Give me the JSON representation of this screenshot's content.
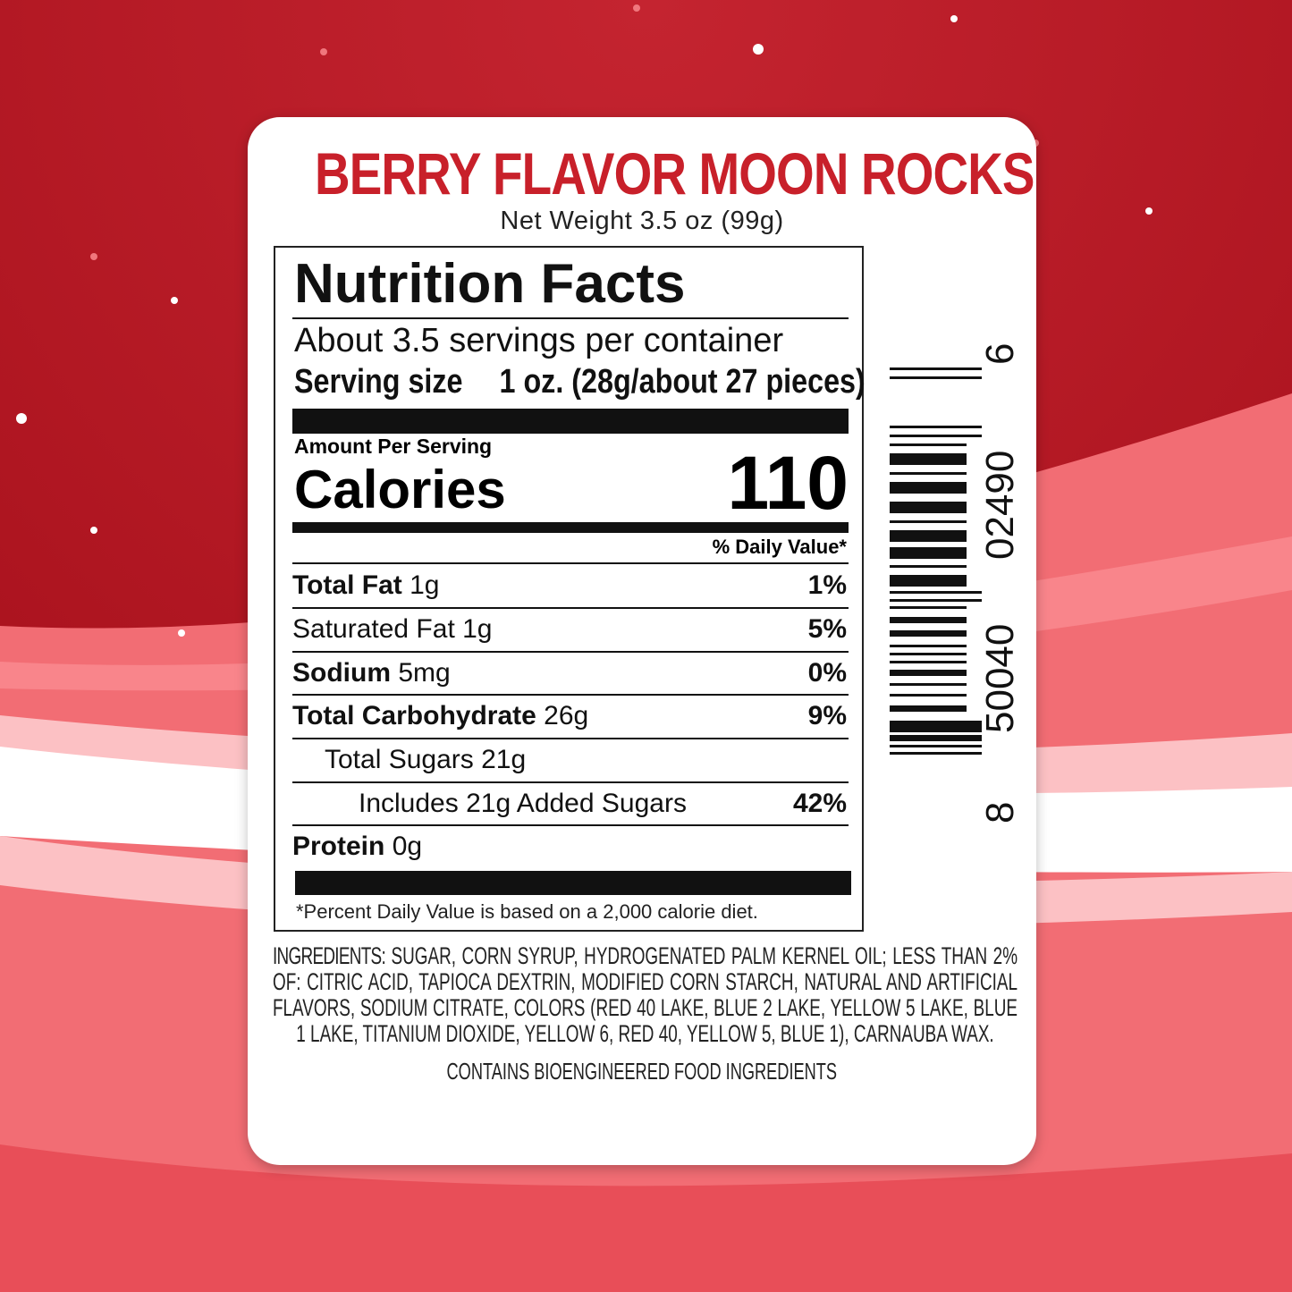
{
  "colors": {
    "background_red": "#b3141f",
    "wave_pink": "#f7737a",
    "title_red": "#c8202a"
  },
  "product": {
    "title": "BERRY FLAVOR MOON ROCKS",
    "net_weight": "Net Weight 3.5 oz (99g)"
  },
  "nutrition": {
    "heading": "Nutrition Facts",
    "servings": "About 3.5 servings per container",
    "serving_size_label": "Serving size",
    "serving_size_value": "1 oz. (28g/about 27 pieces)",
    "amount_per_serving": "Amount Per Serving",
    "calories_label": "Calories",
    "calories_value": "110",
    "daily_value_header": "% Daily Value*",
    "rows": [
      {
        "name": "Total Fat",
        "amount": "1g",
        "dv": "1%"
      },
      {
        "name": "Saturated Fat",
        "amount": "1g",
        "dv": "5%"
      },
      {
        "name": "Sodium",
        "amount": "5mg",
        "dv": "0%"
      },
      {
        "name": "Total Carbohydrate",
        "amount": "26g",
        "dv": "9%"
      },
      {
        "name": "Total Sugars",
        "amount": "21g",
        "dv": ""
      },
      {
        "name": "Includes 21g Added Sugars",
        "amount": "",
        "dv": "42%"
      },
      {
        "name": "Protein",
        "amount": "0g",
        "dv": ""
      }
    ],
    "footnote": "*Percent Daily Value is based on a 2,000 calorie diet."
  },
  "ingredients": {
    "label": "INGREDIENTS:",
    "text": "SUGAR, CORN SYRUP, HYDROGENATED PALM KERNEL OIL; LESS THAN 2% OF: CITRIC ACID, TAPIOCA DEXTRIN, MODIFIED CORN STARCH, NATURAL AND ARTIFICIAL FLAVORS, SODIUM CITRATE, COLORS (RED 40 LAKE, BLUE 2 LAKE, YELLOW 5 LAKE, BLUE 1 LAKE, TITANIUM DIOXIDE, YELLOW 6, RED 40, YELLOW 5, BLUE 1), CARNAUBA WAX.",
    "bioengineered": "CONTAINS BIOENGINEERED FOOD INGREDIENTS"
  },
  "barcode": {
    "first": "8",
    "left": "50040",
    "right": "02490",
    "check": "6"
  }
}
